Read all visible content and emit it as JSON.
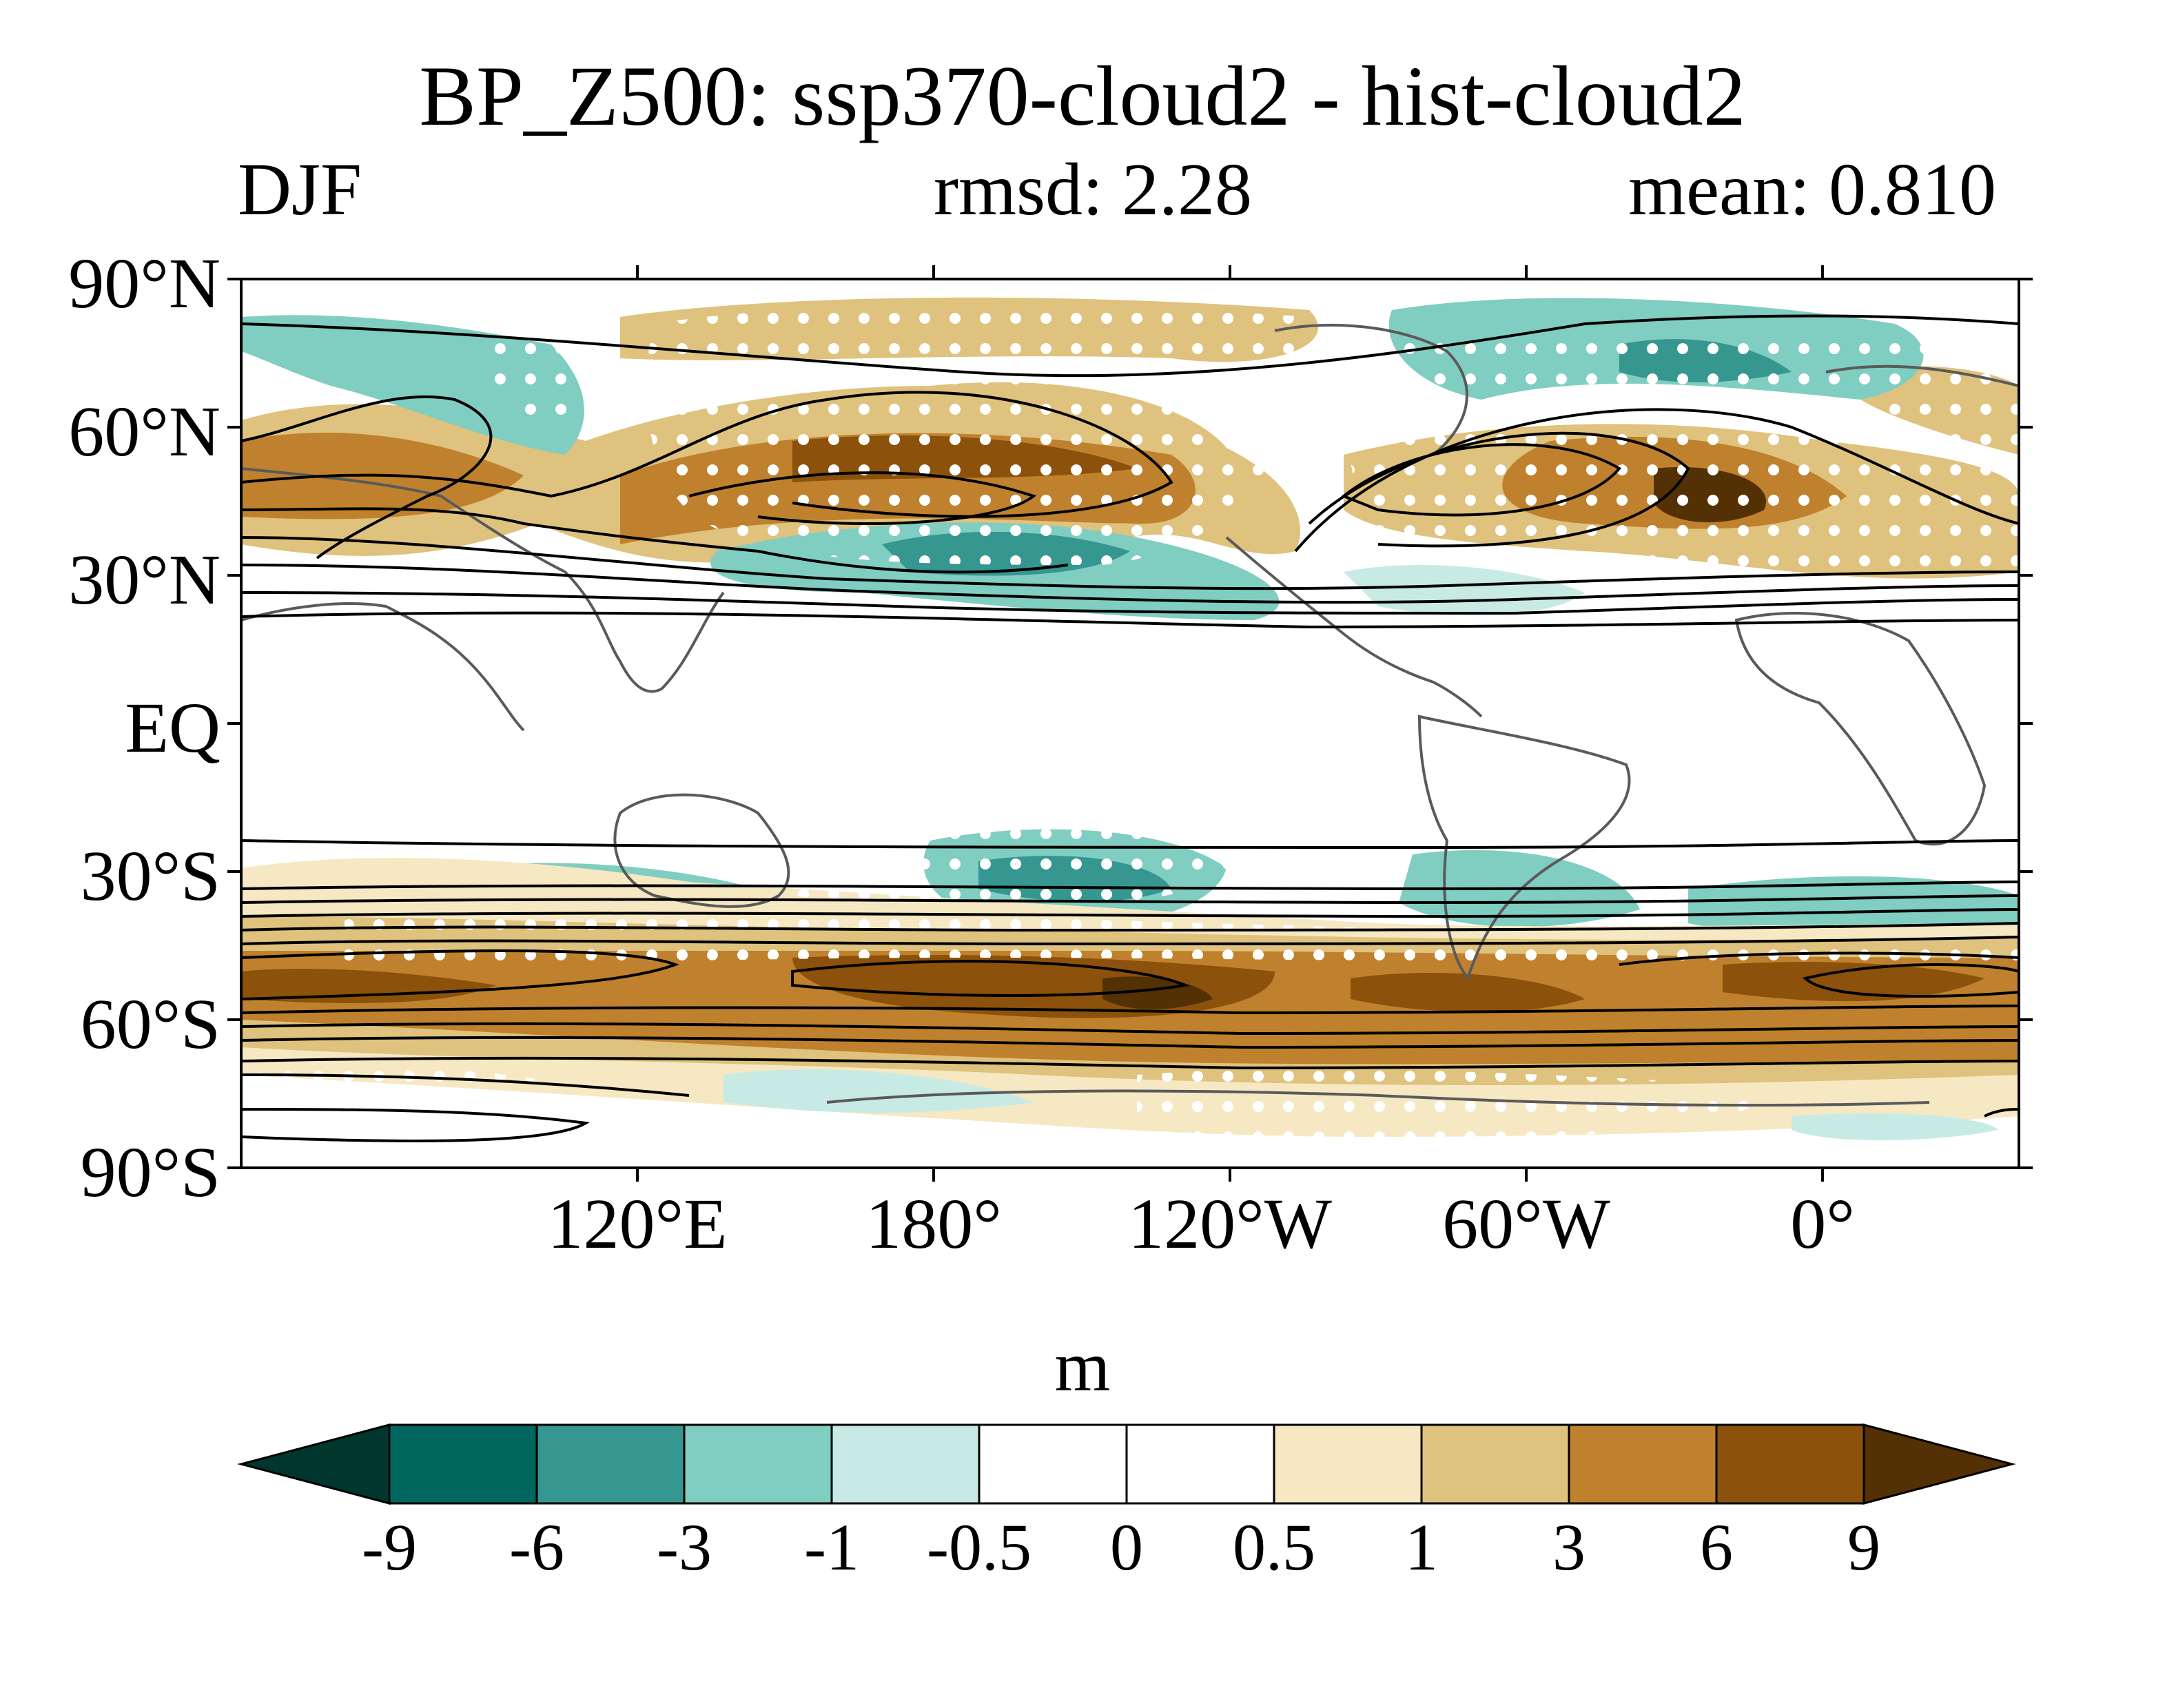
{
  "title": "BP_Z500: ssp370-cloud2 - hist-cloud2",
  "season": "DJF",
  "rmsd_text": "rmsd: 2.28",
  "mean_text": "mean: 0.810",
  "lat_labels": [
    "90°N",
    "60°N",
    "30°N",
    "EQ",
    "30°S",
    "60°S",
    "90°S"
  ],
  "lon_labels": [
    "120°E",
    "180°",
    "120°W",
    "60°W",
    "0°"
  ],
  "colorbar": {
    "unit": "m",
    "levels": [
      "-9",
      "-6",
      "-3",
      "-1",
      "-0.5",
      "0",
      "0.5",
      "1",
      "3",
      "6",
      "9"
    ],
    "colors": [
      "#00362e",
      "#01665e",
      "#35978f",
      "#80cdc1",
      "#c7eae5",
      "#ffffff",
      "#ffffff",
      "#f6e8c3",
      "#dfc27d",
      "#bf812d",
      "#8c510a",
      "#543005"
    ]
  }
}
